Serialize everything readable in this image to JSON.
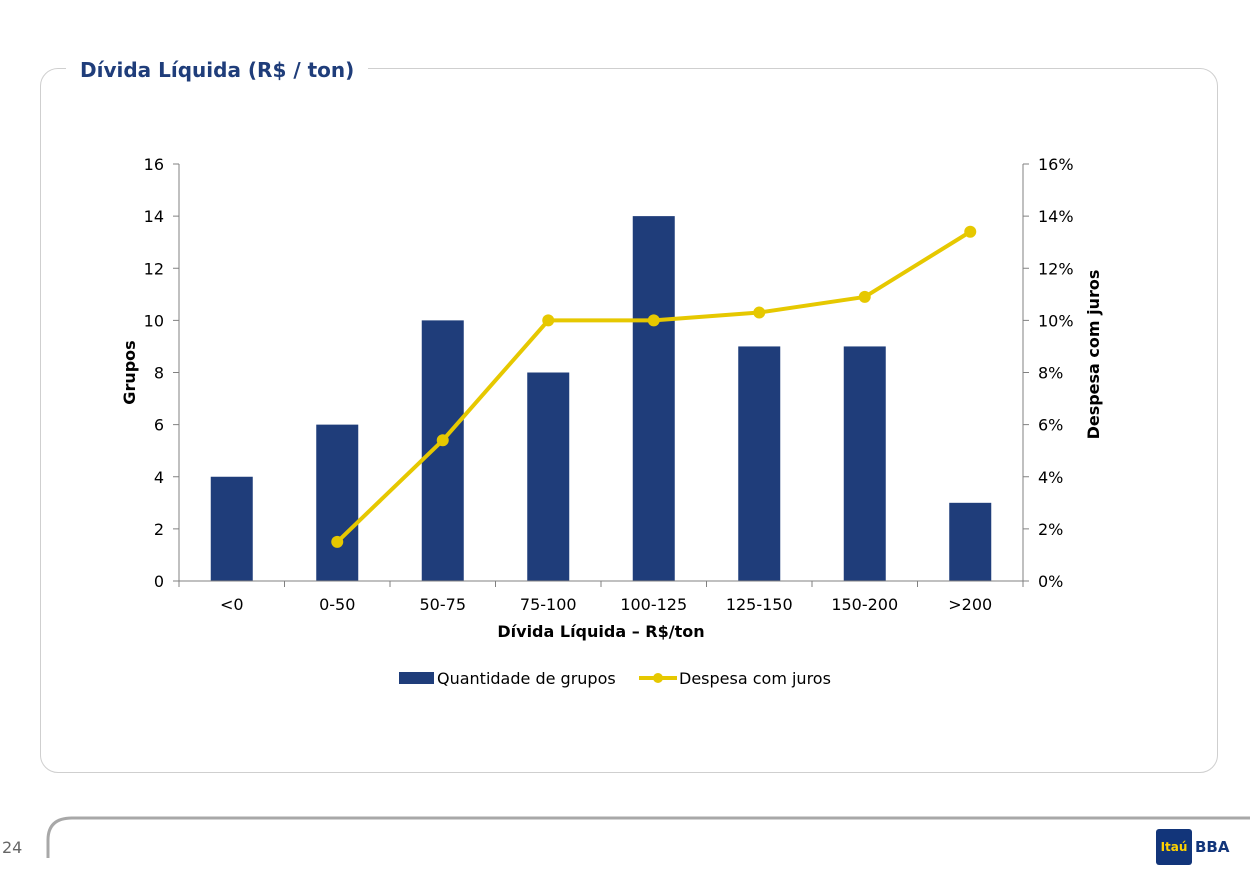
{
  "page": {
    "panel_title": "Dívida Líquida (R$ / ton)",
    "page_number": "24",
    "logo_box_text": "Itaú",
    "logo_text": "BBA",
    "logo_colors": {
      "box": "#12357a",
      "box_text": "#ffd200"
    }
  },
  "chart_data": {
    "type": "bar",
    "categories": [
      "<0",
      "0-50",
      "50-75",
      "75-100",
      "100-125",
      "125-150",
      "150-200",
      ">200"
    ],
    "xlabel": "Dívida Líquida – R$/ton",
    "ylabel": "Grupos",
    "y2label": "Despesa com juros",
    "ylim": [
      0,
      16
    ],
    "yticks": [
      "0",
      "2",
      "4",
      "6",
      "8",
      "10",
      "12",
      "14",
      "16"
    ],
    "y2lim": [
      0,
      16
    ],
    "y2ticks": [
      "0%",
      "2%",
      "4%",
      "6%",
      "8%",
      "10%",
      "12%",
      "14%",
      "16%"
    ],
    "legend_position": "bottom",
    "grid": false,
    "series": [
      {
        "name": "Quantidade de grupos",
        "type": "bar",
        "axis": "left",
        "color": "#1f3d7a",
        "values": [
          4,
          6,
          10,
          8,
          14,
          9,
          9,
          3
        ]
      },
      {
        "name": "Despesa com juros",
        "type": "line",
        "axis": "right",
        "color": "#e6c800",
        "values": [
          null,
          1.5,
          5.4,
          10.0,
          10.0,
          10.3,
          10.9,
          13.4
        ]
      }
    ]
  }
}
